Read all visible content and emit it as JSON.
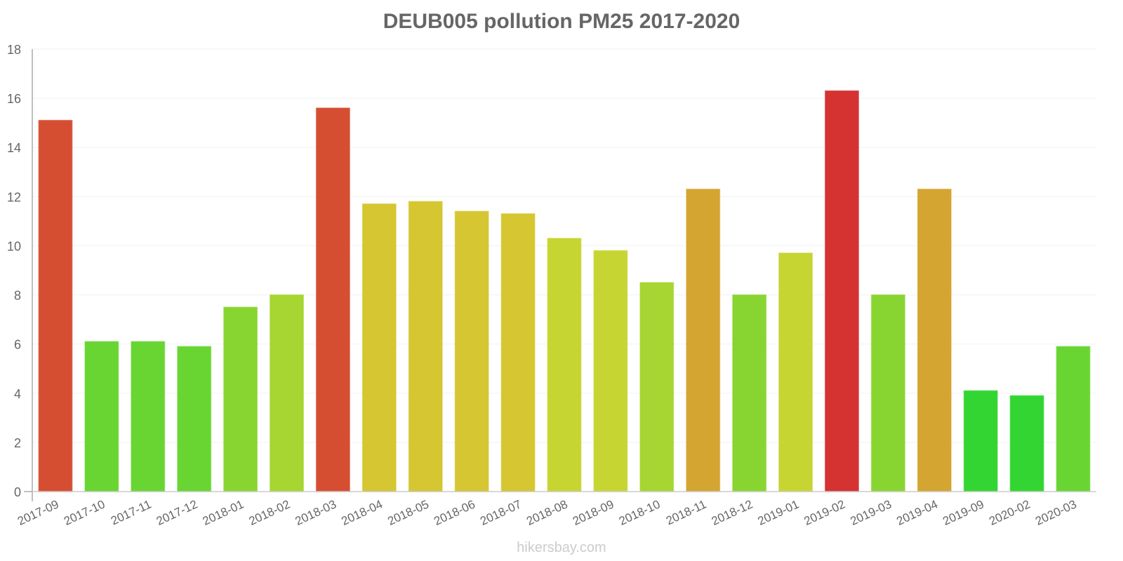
{
  "chart_data": {
    "type": "bar",
    "title": "DEUB005 pollution PM25 2017-2020",
    "xlabel": "",
    "ylabel": "",
    "ylim": [
      0,
      18
    ],
    "yticks": [
      0,
      2,
      4,
      6,
      8,
      10,
      12,
      14,
      16,
      18
    ],
    "grid": true,
    "legend": "none",
    "categories": [
      "2017-09",
      "2017-10",
      "2017-11",
      "2017-12",
      "2018-01",
      "2018-02",
      "2018-03",
      "2018-04",
      "2018-05",
      "2018-06",
      "2018-07",
      "2018-08",
      "2018-09",
      "2018-10",
      "2018-11",
      "2018-12",
      "2019-01",
      "2019-02",
      "2019-03",
      "2019-04",
      "2019-09",
      "2020-02",
      "2020-03"
    ],
    "values": [
      15.1,
      6.1,
      6.1,
      5.9,
      7.5,
      8.0,
      15.6,
      11.7,
      11.8,
      11.4,
      11.3,
      10.3,
      9.8,
      8.5,
      12.3,
      8.0,
      9.7,
      16.3,
      8.0,
      12.3,
      4.1,
      3.9,
      5.9
    ],
    "colors": [
      "#dc5034",
      "#6cdc34",
      "#6cdc34",
      "#6cdc34",
      "#8cdc34",
      "#acdc34",
      "#dc5034",
      "#dccc34",
      "#dccc34",
      "#dccc34",
      "#dccc34",
      "#ccdc34",
      "#ccdc34",
      "#acdc34",
      "#dcaa34",
      "#8cdc34",
      "#ccdc34",
      "#dc3434",
      "#8cdc34",
      "#dcaa34",
      "#34dc34",
      "#34dc34",
      "#6cdc34"
    ]
  },
  "watermark": "hikersbay.com"
}
